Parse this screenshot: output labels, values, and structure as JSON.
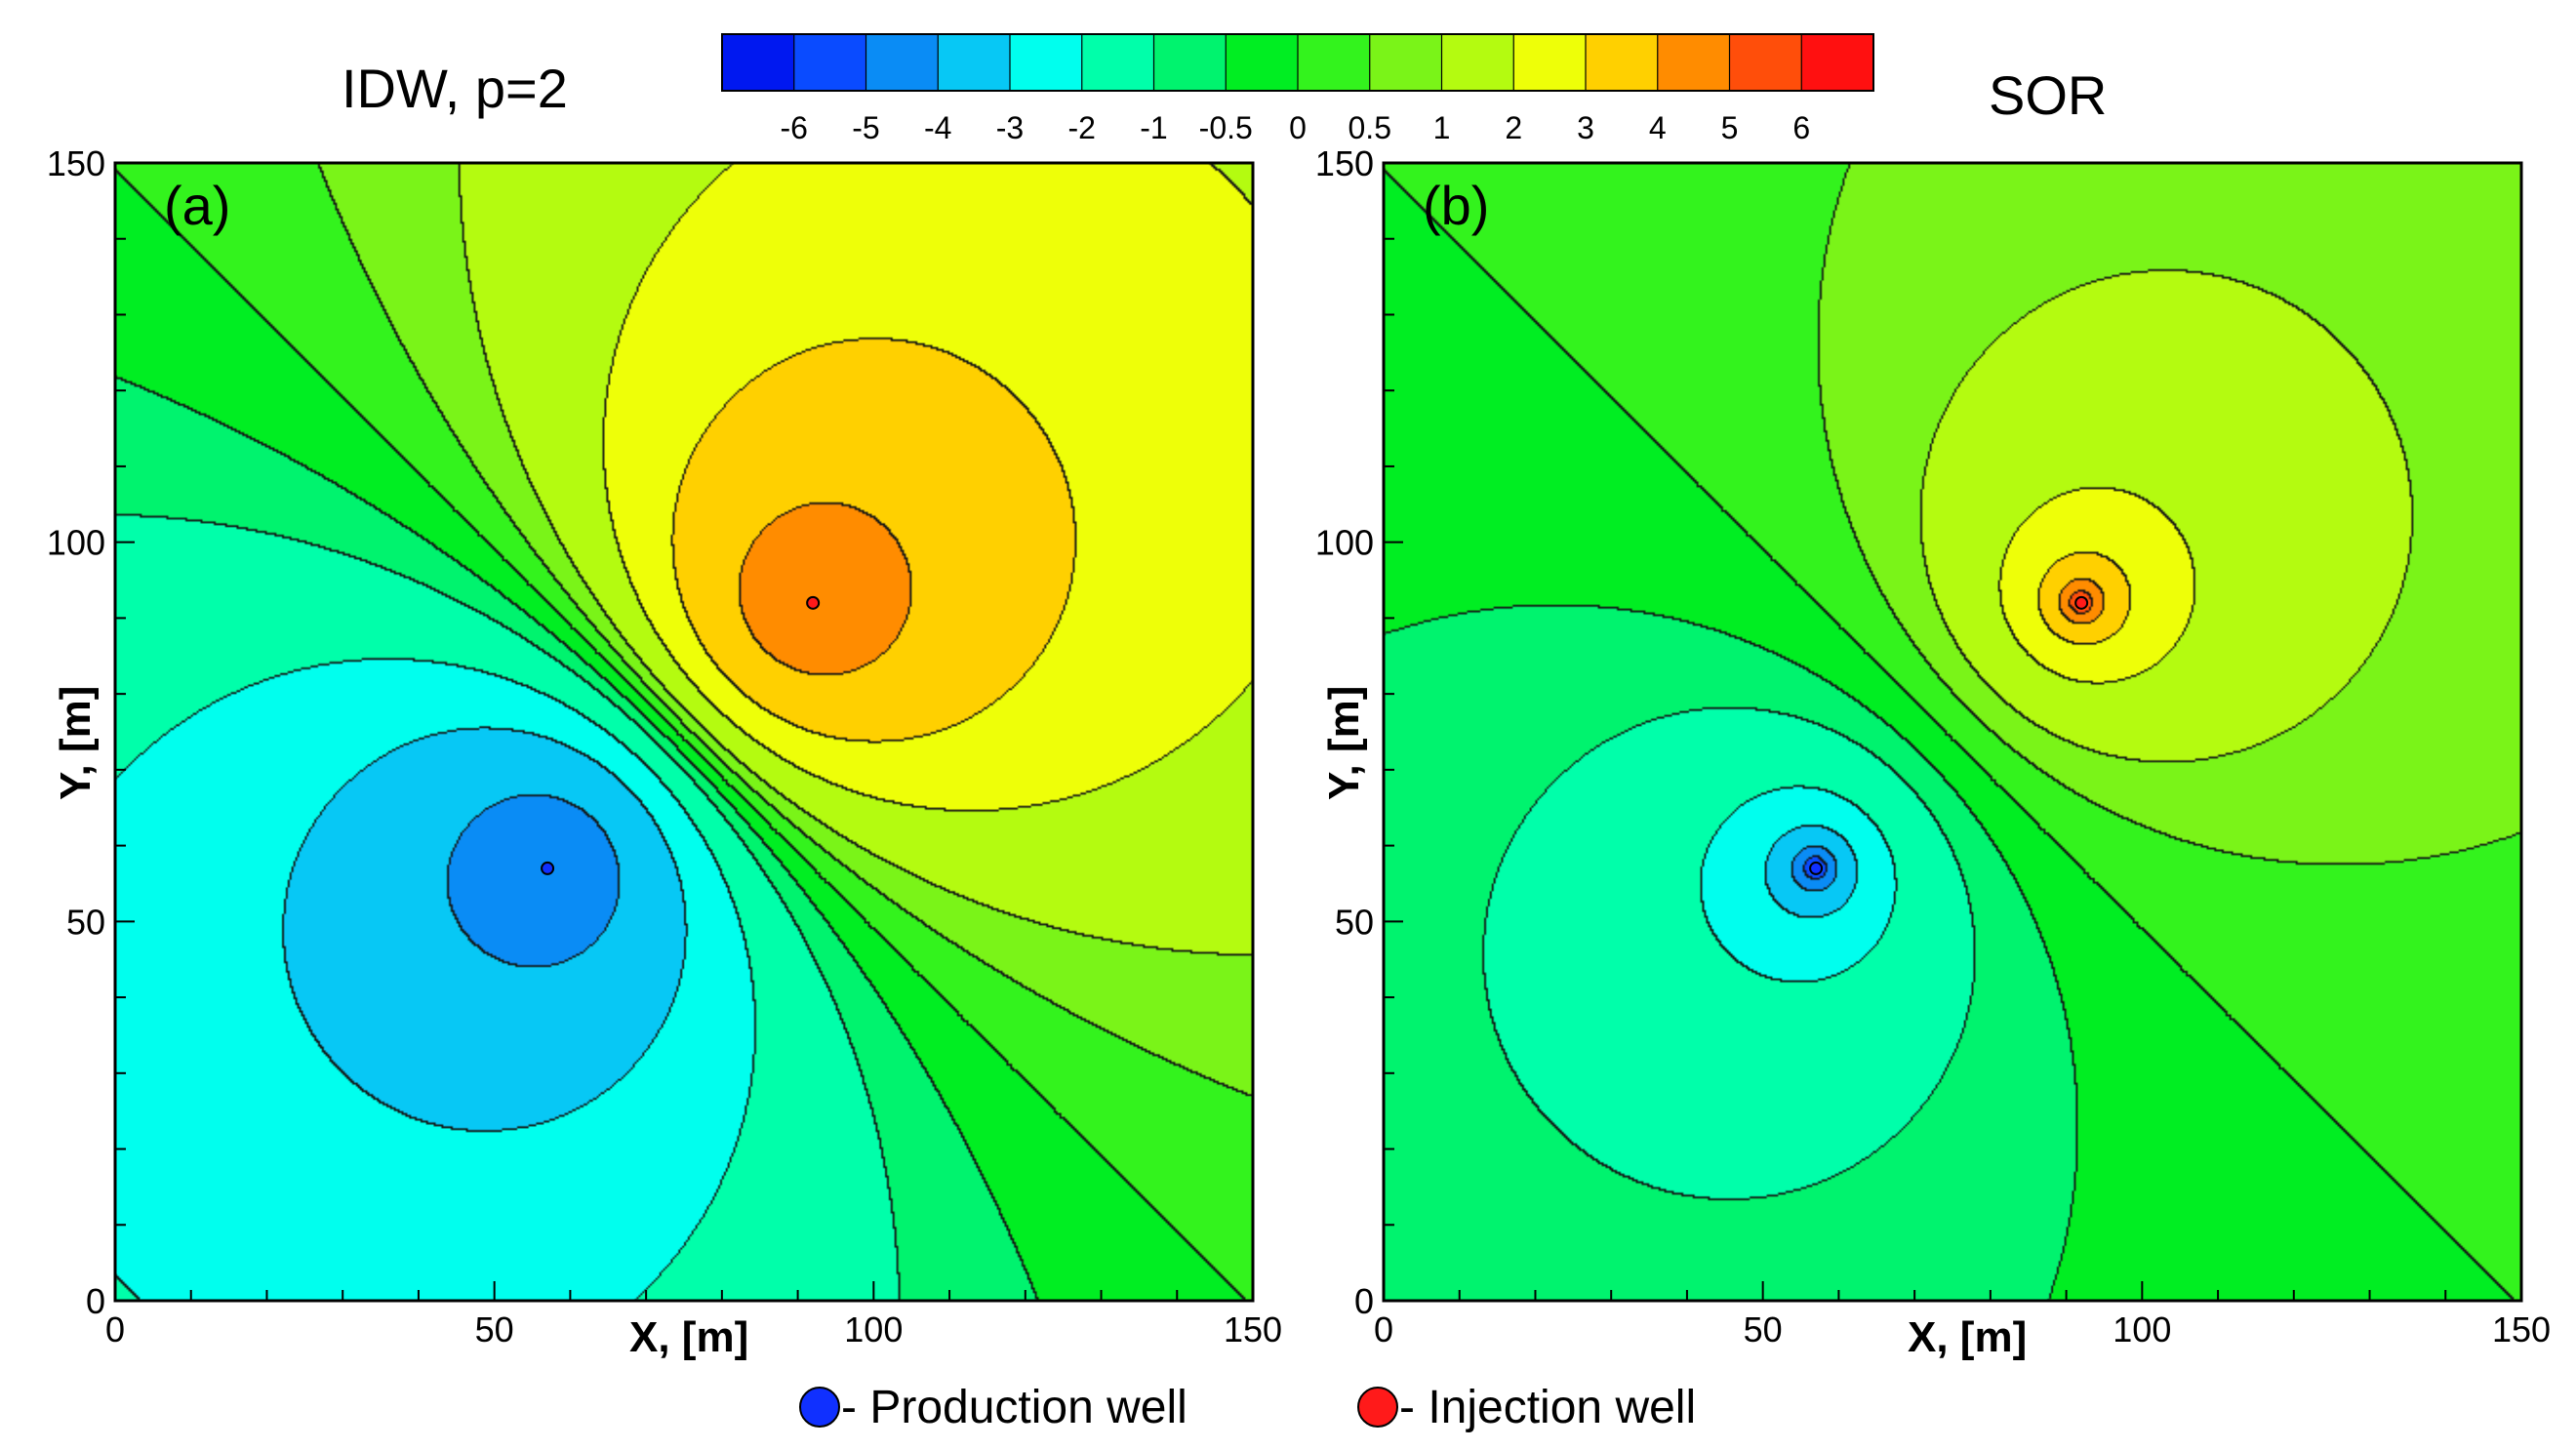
{
  "chart_data": {
    "type": "contour",
    "colorbar": {
      "ticks": [
        "-6",
        "-5",
        "-4",
        "-3",
        "-2",
        "-1",
        "-0.5",
        "0",
        "0.5",
        "1",
        "2",
        "3",
        "4",
        "5",
        "6"
      ],
      "colors": [
        "#0018f0",
        "#0a4bff",
        "#0a8cf5",
        "#07c8f5",
        "#00ffee",
        "#00ffaa",
        "#00f36e",
        "#00ee22",
        "#33f31d",
        "#7af418",
        "#b4fb10",
        "#eeff08",
        "#ffd000",
        "#ff8c00",
        "#ff4e0a",
        "#ff1010"
      ]
    },
    "panels": [
      {
        "id": "a",
        "title": "IDW, p=2",
        "label": "(a)",
        "xlabel": "X, [m]",
        "ylabel": "Y, [m]",
        "xlim": [
          0,
          150
        ],
        "ylim": [
          0,
          150
        ],
        "xticks": [
          "0",
          "50",
          "100",
          "150"
        ],
        "yticks": [
          "0",
          "50",
          "100",
          "150"
        ],
        "production_well": [
          57,
          57
        ],
        "injection_well": [
          92,
          92
        ],
        "method": "idw"
      },
      {
        "id": "b",
        "title": "SOR",
        "label": "(b)",
        "xlabel": "X, [m]",
        "ylabel": "Y, [m]",
        "xlim": [
          0,
          150
        ],
        "ylim": [
          0,
          150
        ],
        "xticks": [
          "0",
          "50",
          "100",
          "150"
        ],
        "yticks": [
          "0",
          "50",
          "100",
          "150"
        ],
        "production_well": [
          57,
          57
        ],
        "injection_well": [
          92,
          92
        ],
        "method": "sor"
      }
    ],
    "legend": {
      "production_label": "- Production well",
      "production_color": "#1030ff",
      "injection_label": "- Injection well",
      "injection_color": "#ff1a1a"
    }
  }
}
